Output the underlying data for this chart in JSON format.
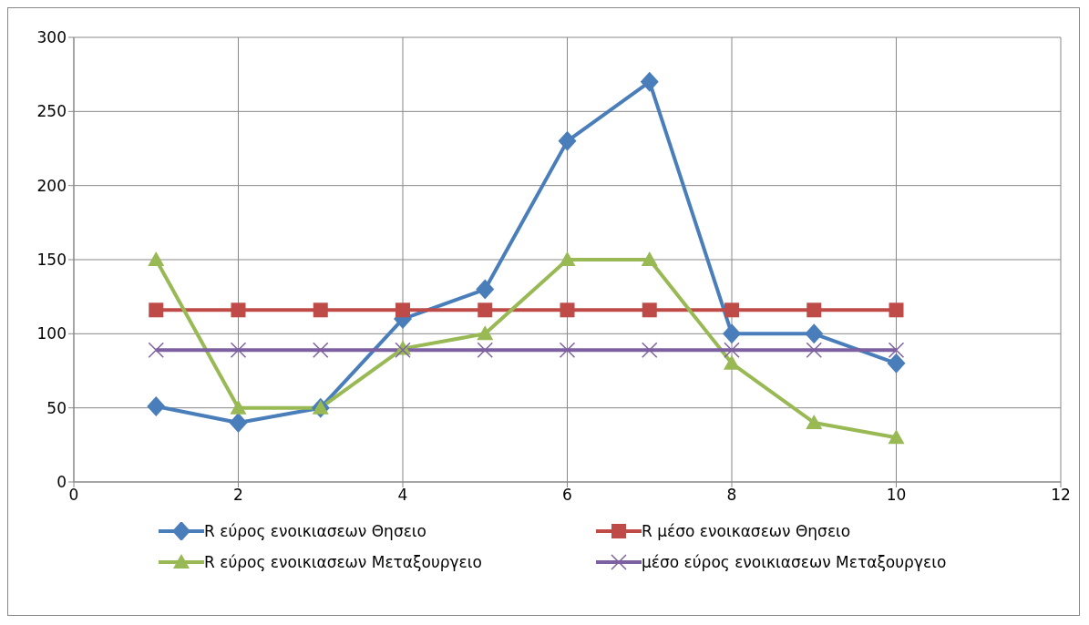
{
  "chart_data": {
    "type": "line",
    "x": [
      1,
      2,
      3,
      4,
      5,
      6,
      7,
      8,
      9,
      10
    ],
    "xlim": [
      0,
      12
    ],
    "xticks": [
      0,
      2,
      4,
      6,
      8,
      10,
      12
    ],
    "ylim": [
      0,
      300
    ],
    "yticks": [
      0,
      50,
      100,
      150,
      200,
      250,
      300
    ],
    "grid": true,
    "legend": "bottom",
    "series": [
      {
        "name": "R εύρος ενοικιασεων Θησειο",
        "color": "#4a7ebb",
        "marker": "diamond",
        "values": [
          51,
          40,
          50,
          110,
          130,
          230,
          270,
          100,
          100,
          80
        ]
      },
      {
        "name": "R μέσο ενοικασεων Θησειο",
        "color": "#be4b48",
        "marker": "square",
        "values": [
          116,
          116,
          116,
          116,
          116,
          116,
          116,
          116,
          116,
          116
        ]
      },
      {
        "name": "R εύρος ενοικιασεων Μεταξουργειο",
        "color": "#98b954",
        "marker": "triangle",
        "values": [
          150,
          50,
          50,
          90,
          100,
          150,
          150,
          80,
          40,
          30
        ]
      },
      {
        "name": "μέσο εύρος ενοικιασεων Μεταξουργειο",
        "color": "#7d60a0",
        "marker": "cross",
        "values": [
          89,
          89,
          89,
          89,
          89,
          89,
          89,
          89,
          89,
          89
        ]
      }
    ]
  }
}
